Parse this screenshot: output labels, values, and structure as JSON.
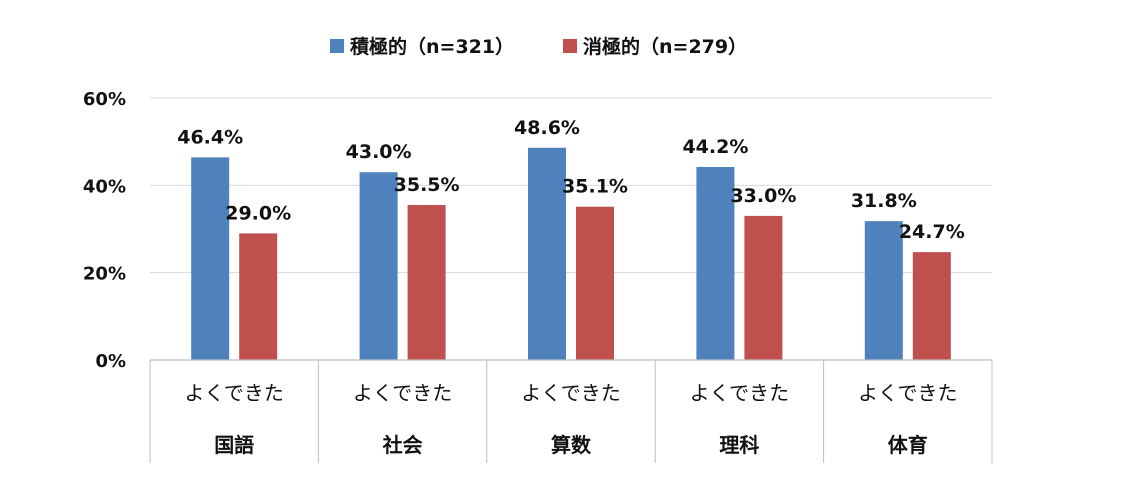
{
  "chart_data": {
    "type": "bar",
    "categories": [
      {
        "sub": "よくできた",
        "main": "国語"
      },
      {
        "sub": "よくできた",
        "main": "社会"
      },
      {
        "sub": "よくできた",
        "main": "算数"
      },
      {
        "sub": "よくできた",
        "main": "理科"
      },
      {
        "sub": "よくできた",
        "main": "体育"
      }
    ],
    "series": [
      {
        "name": "積極的（n=321）",
        "color": "#4f81bd",
        "values": [
          46.4,
          43.0,
          48.6,
          44.2,
          31.8
        ],
        "labels": [
          "46.4%",
          "43.0%",
          "48.6%",
          "44.2%",
          "31.8%"
        ]
      },
      {
        "name": "消極的（n=279）",
        "color": "#c0504d",
        "values": [
          29.0,
          35.5,
          35.1,
          33.0,
          24.7
        ],
        "labels": [
          "29.0%",
          "35.5%",
          "35.1%",
          "33.0%",
          "24.7%"
        ]
      }
    ],
    "ylim": [
      0,
      60
    ],
    "yticks": [
      0,
      20,
      40,
      60
    ],
    "ytick_labels": [
      "0%",
      "20%",
      "40%",
      "60%"
    ],
    "grid": true,
    "gridline_color": "#d9d9d9",
    "legend_position": "top-center",
    "title": "",
    "xlabel": "",
    "ylabel": ""
  }
}
